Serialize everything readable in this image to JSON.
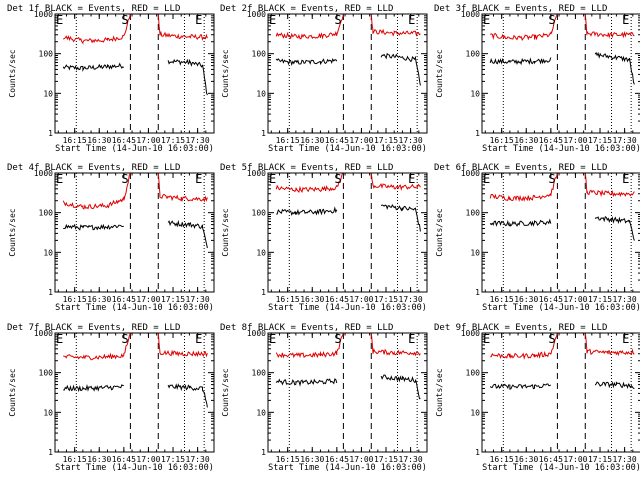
{
  "chart_data": [
    {
      "type": "line",
      "title": "Det 1f BLACK = Events, RED = LLD",
      "xlabel": "Start Time (14-Jun-10 16:03:00)",
      "ylabel": "Counts/sec",
      "yscale": "log",
      "ylim": [
        1,
        1000
      ],
      "xlim": [
        "16:03",
        "17:40"
      ],
      "x_ticks": [
        "16:15",
        "16:30",
        "16:45",
        "17:00",
        "17:15",
        "17:30"
      ],
      "y_ticks": [
        "1",
        "10",
        "100",
        "1000"
      ],
      "markers": [
        "E",
        "S",
        "E"
      ],
      "series": [
        {
          "color": "#000000",
          "values": [
            {
              "x": "16:08",
              "y": 45
            },
            {
              "x": "16:20",
              "y": 43
            },
            {
              "x": "16:35",
              "y": 47
            },
            {
              "x": "16:45",
              "y": 50
            },
            {
              "x": "17:12",
              "y": 65
            },
            {
              "x": "17:25",
              "y": 60
            },
            {
              "x": "17:33",
              "y": 50
            },
            {
              "x": "17:36",
              "y": 8
            }
          ]
        },
        {
          "color": "#e00000",
          "values": [
            {
              "x": "16:08",
              "y": 260
            },
            {
              "x": "16:20",
              "y": 210
            },
            {
              "x": "16:35",
              "y": 220
            },
            {
              "x": "16:45",
              "y": 270
            },
            {
              "x": "16:49",
              "y": 1000
            },
            {
              "x": "17:06",
              "y": 1000
            },
            {
              "x": "17:07",
              "y": 300
            },
            {
              "x": "17:20",
              "y": 270
            },
            {
              "x": "17:36",
              "y": 260
            }
          ]
        }
      ]
    },
    {
      "type": "line",
      "title": "Det 2f BLACK = Events, RED = LLD",
      "xlabel": "Start Time (14-Jun-10 16:03:00)",
      "ylabel": "Counts/sec",
      "yscale": "log",
      "ylim": [
        1,
        1000
      ],
      "xlim": [
        "16:03",
        "17:40"
      ],
      "x_ticks": [
        "16:15",
        "16:30",
        "16:45",
        "17:00",
        "17:15",
        "17:30"
      ],
      "y_ticks": [
        "1",
        "10",
        "100",
        "1000"
      ],
      "markers": [
        "E",
        "S",
        "E"
      ],
      "series": [
        {
          "color": "#000000",
          "values": [
            {
              "x": "16:08",
              "y": 65
            },
            {
              "x": "16:20",
              "y": 60
            },
            {
              "x": "16:35",
              "y": 63
            },
            {
              "x": "16:45",
              "y": 68
            },
            {
              "x": "17:12",
              "y": 90
            },
            {
              "x": "17:25",
              "y": 80
            },
            {
              "x": "17:33",
              "y": 70
            },
            {
              "x": "17:36",
              "y": 15
            }
          ]
        },
        {
          "color": "#e00000",
          "values": [
            {
              "x": "16:08",
              "y": 300
            },
            {
              "x": "16:20",
              "y": 270
            },
            {
              "x": "16:35",
              "y": 280
            },
            {
              "x": "16:45",
              "y": 320
            },
            {
              "x": "16:49",
              "y": 1000
            },
            {
              "x": "17:06",
              "y": 1000
            },
            {
              "x": "17:07",
              "y": 360
            },
            {
              "x": "17:20",
              "y": 330
            },
            {
              "x": "17:36",
              "y": 320
            }
          ]
        }
      ]
    },
    {
      "type": "line",
      "title": "Det 3f BLACK = Events, RED = LLD",
      "xlabel": "Start Time (14-Jun-10 16:03:00)",
      "ylabel": "Counts/sec",
      "yscale": "log",
      "ylim": [
        1,
        1000
      ],
      "xlim": [
        "16:03",
        "17:40"
      ],
      "x_ticks": [
        "16:15",
        "16:30",
        "16:45",
        "17:00",
        "17:15",
        "17:30"
      ],
      "y_ticks": [
        "1",
        "10",
        "100",
        "1000"
      ],
      "markers": [
        "E",
        "S",
        "E"
      ],
      "series": [
        {
          "color": "#000000",
          "values": [
            {
              "x": "16:08",
              "y": 65
            },
            {
              "x": "16:20",
              "y": 62
            },
            {
              "x": "16:35",
              "y": 65
            },
            {
              "x": "16:45",
              "y": 70
            },
            {
              "x": "17:12",
              "y": 95
            },
            {
              "x": "17:25",
              "y": 80
            },
            {
              "x": "17:33",
              "y": 70
            },
            {
              "x": "17:36",
              "y": 15
            }
          ]
        },
        {
          "color": "#e00000",
          "values": [
            {
              "x": "16:08",
              "y": 290
            },
            {
              "x": "16:20",
              "y": 250
            },
            {
              "x": "16:35",
              "y": 260
            },
            {
              "x": "16:45",
              "y": 300
            },
            {
              "x": "16:49",
              "y": 1000
            },
            {
              "x": "17:06",
              "y": 1000
            },
            {
              "x": "17:07",
              "y": 320
            },
            {
              "x": "17:20",
              "y": 300
            },
            {
              "x": "17:36",
              "y": 300
            }
          ]
        }
      ]
    },
    {
      "type": "line",
      "title": "Det 4f BLACK = Events, RED = LLD",
      "xlabel": "Start Time (14-Jun-10 16:03:00)",
      "ylabel": "Counts/sec",
      "yscale": "log",
      "ylim": [
        1,
        1000
      ],
      "xlim": [
        "16:03",
        "17:40"
      ],
      "x_ticks": [
        "16:15",
        "16:30",
        "16:45",
        "17:00",
        "17:15",
        "17:30"
      ],
      "y_ticks": [
        "1",
        "10",
        "100",
        "1000"
      ],
      "markers": [
        "E",
        "S",
        "E"
      ],
      "series": [
        {
          "color": "#000000",
          "values": [
            {
              "x": "16:08",
              "y": 45
            },
            {
              "x": "16:20",
              "y": 42
            },
            {
              "x": "16:35",
              "y": 44
            },
            {
              "x": "16:45",
              "y": 48
            },
            {
              "x": "17:12",
              "y": 55
            },
            {
              "x": "17:25",
              "y": 50
            },
            {
              "x": "17:33",
              "y": 45
            },
            {
              "x": "17:36",
              "y": 12
            }
          ]
        },
        {
          "color": "#e00000",
          "values": [
            {
              "x": "16:08",
              "y": 180
            },
            {
              "x": "16:20",
              "y": 140
            },
            {
              "x": "16:35",
              "y": 150
            },
            {
              "x": "16:45",
              "y": 220
            },
            {
              "x": "16:49",
              "y": 1000
            },
            {
              "x": "17:06",
              "y": 1000
            },
            {
              "x": "17:07",
              "y": 260
            },
            {
              "x": "17:20",
              "y": 230
            },
            {
              "x": "17:36",
              "y": 220
            }
          ]
        }
      ]
    },
    {
      "type": "line",
      "title": "Det 5f BLACK = Events, RED = LLD",
      "xlabel": "Start Time (14-Jun-10 16:03:00)",
      "ylabel": "Counts/sec",
      "yscale": "log",
      "ylim": [
        1,
        1000
      ],
      "xlim": [
        "16:03",
        "17:40"
      ],
      "x_ticks": [
        "16:15",
        "16:30",
        "16:45",
        "17:00",
        "17:15",
        "17:30"
      ],
      "y_ticks": [
        "1",
        "10",
        "100",
        "1000"
      ],
      "markers": [
        "E",
        "S",
        "E"
      ],
      "series": [
        {
          "color": "#000000",
          "values": [
            {
              "x": "16:08",
              "y": 105
            },
            {
              "x": "16:20",
              "y": 100
            },
            {
              "x": "16:35",
              "y": 105
            },
            {
              "x": "16:45",
              "y": 115
            },
            {
              "x": "17:12",
              "y": 150
            },
            {
              "x": "17:25",
              "y": 130
            },
            {
              "x": "17:33",
              "y": 120
            },
            {
              "x": "17:36",
              "y": 35
            }
          ]
        },
        {
          "color": "#e00000",
          "values": [
            {
              "x": "16:08",
              "y": 420
            },
            {
              "x": "16:20",
              "y": 380
            },
            {
              "x": "16:35",
              "y": 390
            },
            {
              "x": "16:45",
              "y": 430
            },
            {
              "x": "16:49",
              "y": 1000
            },
            {
              "x": "17:06",
              "y": 1000
            },
            {
              "x": "17:07",
              "y": 480
            },
            {
              "x": "17:20",
              "y": 440
            },
            {
              "x": "17:36",
              "y": 450
            }
          ]
        }
      ]
    },
    {
      "type": "line",
      "title": "Det 6f BLACK = Events, RED = LLD",
      "xlabel": "Start Time (14-Jun-10 16:03:00)",
      "ylabel": "Counts/sec",
      "yscale": "log",
      "ylim": [
        1,
        1000
      ],
      "xlim": [
        "16:03",
        "17:40"
      ],
      "x_ticks": [
        "16:15",
        "16:30",
        "16:45",
        "17:00",
        "17:15",
        "17:30"
      ],
      "y_ticks": [
        "1",
        "10",
        "100",
        "1000"
      ],
      "markers": [
        "E",
        "S",
        "E"
      ],
      "series": [
        {
          "color": "#000000",
          "values": [
            {
              "x": "16:08",
              "y": 55
            },
            {
              "x": "16:20",
              "y": 52
            },
            {
              "x": "16:35",
              "y": 55
            },
            {
              "x": "16:45",
              "y": 58
            },
            {
              "x": "17:12",
              "y": 75
            },
            {
              "x": "17:25",
              "y": 65
            },
            {
              "x": "17:33",
              "y": 60
            },
            {
              "x": "17:36",
              "y": 20
            }
          ]
        },
        {
          "color": "#e00000",
          "values": [
            {
              "x": "16:08",
              "y": 260
            },
            {
              "x": "16:20",
              "y": 230
            },
            {
              "x": "16:35",
              "y": 240
            },
            {
              "x": "16:45",
              "y": 290
            },
            {
              "x": "16:49",
              "y": 1000
            },
            {
              "x": "17:06",
              "y": 1000
            },
            {
              "x": "17:07",
              "y": 330
            },
            {
              "x": "17:20",
              "y": 300
            },
            {
              "x": "17:36",
              "y": 300
            }
          ]
        }
      ]
    },
    {
      "type": "line",
      "title": "Det 7f BLACK = Events, RED = LLD",
      "xlabel": "Start Time (14-Jun-10 16:03:00)",
      "ylabel": "Counts/sec",
      "yscale": "log",
      "ylim": [
        1,
        1000
      ],
      "xlim": [
        "16:03",
        "17:40"
      ],
      "x_ticks": [
        "16:15",
        "16:30",
        "16:45",
        "17:00",
        "17:15",
        "17:30"
      ],
      "y_ticks": [
        "1",
        "10",
        "100",
        "1000"
      ],
      "markers": [
        "E",
        "S",
        "E"
      ],
      "series": [
        {
          "color": "#000000",
          "values": [
            {
              "x": "16:08",
              "y": 40
            },
            {
              "x": "16:20",
              "y": 40
            },
            {
              "x": "16:35",
              "y": 42
            },
            {
              "x": "16:45",
              "y": 44
            },
            {
              "x": "17:12",
              "y": 45
            },
            {
              "x": "17:25",
              "y": 42
            },
            {
              "x": "17:33",
              "y": 40
            },
            {
              "x": "17:36",
              "y": 15
            }
          ]
        },
        {
          "color": "#e00000",
          "values": [
            {
              "x": "16:08",
              "y": 250
            },
            {
              "x": "16:20",
              "y": 240
            },
            {
              "x": "16:35",
              "y": 250
            },
            {
              "x": "16:45",
              "y": 270
            },
            {
              "x": "16:49",
              "y": 1000
            },
            {
              "x": "17:06",
              "y": 1000
            },
            {
              "x": "17:07",
              "y": 320
            },
            {
              "x": "17:20",
              "y": 300
            },
            {
              "x": "17:36",
              "y": 300
            }
          ]
        }
      ]
    },
    {
      "type": "line",
      "title": "Det 8f BLACK = Events, RED = LLD",
      "xlabel": "Start Time (14-Jun-10 16:03:00)",
      "ylabel": "Counts/sec",
      "yscale": "log",
      "ylim": [
        1,
        1000
      ],
      "xlim": [
        "16:03",
        "17:40"
      ],
      "x_ticks": [
        "16:15",
        "16:30",
        "16:45",
        "17:00",
        "17:15",
        "17:30"
      ],
      "y_ticks": [
        "1",
        "10",
        "100",
        "1000"
      ],
      "markers": [
        "E",
        "S",
        "E"
      ],
      "series": [
        {
          "color": "#000000",
          "values": [
            {
              "x": "16:08",
              "y": 60
            },
            {
              "x": "16:20",
              "y": 56
            },
            {
              "x": "16:35",
              "y": 58
            },
            {
              "x": "16:45",
              "y": 62
            },
            {
              "x": "17:12",
              "y": 78
            },
            {
              "x": "17:25",
              "y": 70
            },
            {
              "x": "17:33",
              "y": 65
            },
            {
              "x": "17:36",
              "y": 20
            }
          ]
        },
        {
          "color": "#e00000",
          "values": [
            {
              "x": "16:08",
              "y": 290
            },
            {
              "x": "16:20",
              "y": 270
            },
            {
              "x": "16:35",
              "y": 280
            },
            {
              "x": "16:45",
              "y": 310
            },
            {
              "x": "16:49",
              "y": 1000
            },
            {
              "x": "17:06",
              "y": 1000
            },
            {
              "x": "17:07",
              "y": 340
            },
            {
              "x": "17:20",
              "y": 320
            },
            {
              "x": "17:36",
              "y": 320
            }
          ]
        }
      ]
    },
    {
      "type": "line",
      "title": "Det 9f BLACK = Events, RED = LLD",
      "xlabel": "Start Time (14-Jun-10 16:03:00)",
      "ylabel": "Counts/sec",
      "yscale": "log",
      "ylim": [
        1,
        1000
      ],
      "xlim": [
        "16:03",
        "17:40"
      ],
      "x_ticks": [
        "16:15",
        "16:30",
        "16:45",
        "17:00",
        "17:15",
        "17:30"
      ],
      "y_ticks": [
        "1",
        "10",
        "100",
        "1000"
      ],
      "markers": [
        "E",
        "S",
        "E"
      ],
      "series": [
        {
          "color": "#000000",
          "values": [
            {
              "x": "16:08",
              "y": 45
            },
            {
              "x": "16:20",
              "y": 44
            },
            {
              "x": "16:35",
              "y": 45
            },
            {
              "x": "16:45",
              "y": 48
            },
            {
              "x": "17:12",
              "y": 52
            },
            {
              "x": "17:25",
              "y": 50
            },
            {
              "x": "17:33",
              "y": 48
            },
            {
              "x": "17:36",
              "y": 40
            }
          ]
        },
        {
          "color": "#e00000",
          "values": [
            {
              "x": "16:08",
              "y": 280
            },
            {
              "x": "16:20",
              "y": 260
            },
            {
              "x": "16:35",
              "y": 270
            },
            {
              "x": "16:45",
              "y": 300
            },
            {
              "x": "16:49",
              "y": 1000
            },
            {
              "x": "17:06",
              "y": 1000
            },
            {
              "x": "17:07",
              "y": 340
            },
            {
              "x": "17:20",
              "y": 320
            },
            {
              "x": "17:36",
              "y": 330
            }
          ]
        }
      ]
    }
  ],
  "vlines": {
    "dotted": [
      "16:16",
      "17:22",
      "17:34"
    ],
    "dashed": [
      "16:49",
      "17:06"
    ]
  }
}
